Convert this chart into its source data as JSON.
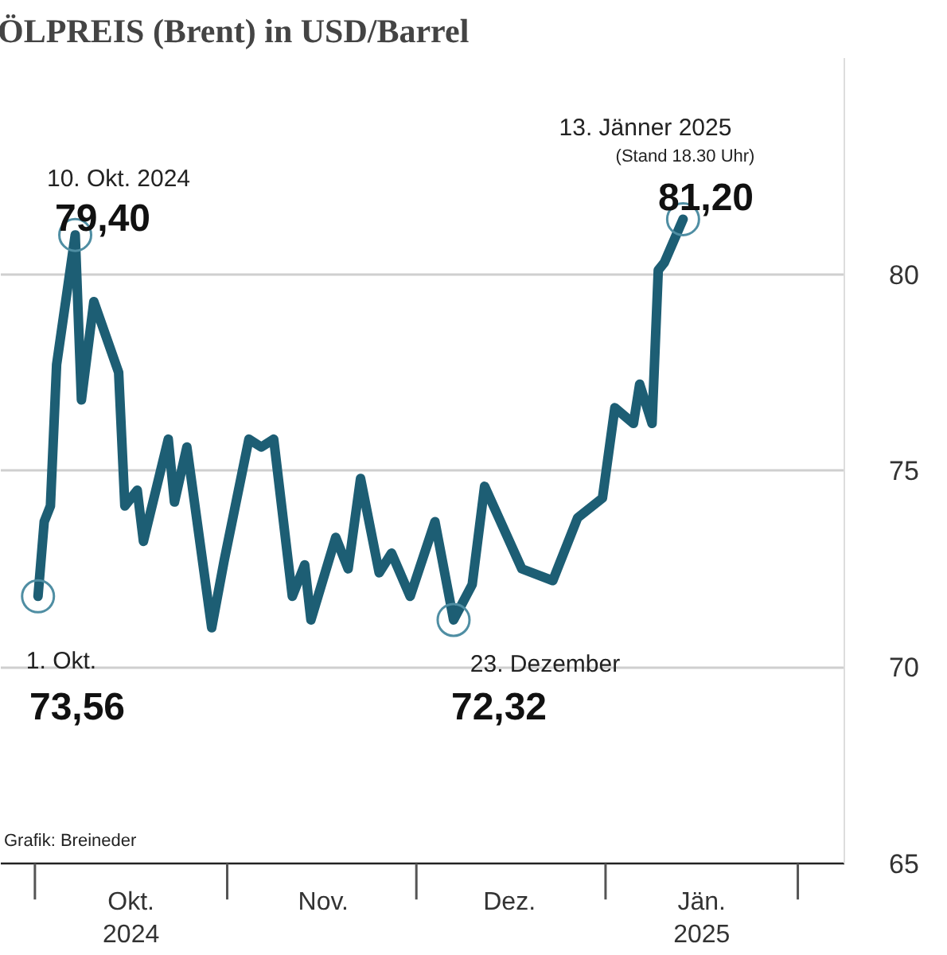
{
  "chart_data": {
    "type": "line",
    "title": "ÖLPREIS (Brent) in USD/Barrel",
    "x": [
      "2024-10-01",
      "2024-10-02",
      "2024-10-03",
      "2024-10-04",
      "2024-10-07",
      "2024-10-08",
      "2024-10-10",
      "2024-10-14",
      "2024-10-15",
      "2024-10-17",
      "2024-10-18",
      "2024-10-22",
      "2024-10-23",
      "2024-10-25",
      "2024-10-29",
      "2024-10-31",
      "2024-11-04",
      "2024-11-06",
      "2024-11-08",
      "2024-11-11",
      "2024-11-13",
      "2024-11-14",
      "2024-11-18",
      "2024-11-20",
      "2024-11-22",
      "2024-11-25",
      "2024-11-27",
      "2024-11-30",
      "2024-12-04",
      "2024-12-07",
      "2024-12-10",
      "2024-12-12",
      "2024-12-18",
      "2024-12-23",
      "2024-12-27",
      "2024-12-31",
      "2025-01-02",
      "2025-01-05",
      "2025-01-06",
      "2025-01-08",
      "2025-01-09",
      "2025-01-10",
      "2025-01-13"
    ],
    "series": [
      {
        "color": "#1d5e74",
        "values": [
          71.8,
          73.7,
          74.1,
          77.7,
          81.0,
          76.8,
          79.3,
          77.5,
          74.1,
          74.5,
          73.2,
          75.8,
          74.2,
          75.6,
          71.0,
          72.7,
          75.8,
          75.6,
          75.8,
          71.8,
          72.6,
          71.2,
          73.3,
          72.5,
          74.8,
          72.4,
          72.9,
          71.8,
          73.7,
          71.2,
          72.1,
          74.6,
          72.5,
          72.2,
          73.8,
          74.3,
          76.6,
          76.2,
          77.2,
          76.2,
          80.1,
          80.3,
          81.4
        ]
      },
      {
        "type": "scatter",
        "marker": "circle",
        "color": "#4f8ea3",
        "x": [
          "2024-10-01",
          "2024-10-07",
          "2024-12-07",
          "2025-01-13"
        ],
        "values": [
          71.8,
          81.0,
          71.2,
          81.4
        ]
      }
    ],
    "xlim": [
      "2024-09-25",
      "2025-02-08"
    ],
    "xticks": [
      {
        "value": "2024-10-16",
        "label": "Okt.\n2024"
      },
      {
        "value": "2024-11-16",
        "label": "Nov."
      },
      {
        "value": "2024-12-16",
        "label": "Dez."
      },
      {
        "value": "2025-01-16",
        "label": "Jän.\n2025"
      }
    ],
    "ylim": [
      65,
      85.5
    ],
    "yticks": [
      65,
      70,
      75,
      80
    ],
    "grid": "y",
    "line_style": "solid",
    "annotations": [
      "10. Okt. 2024",
      "79,40",
      "1. Okt.",
      "73,56",
      "23. Dezember",
      "72,32",
      "13. Jänner 2025",
      "(Stand 18.30 Uhr)",
      "81,20",
      "Grafik: Breineder"
    ]
  }
}
